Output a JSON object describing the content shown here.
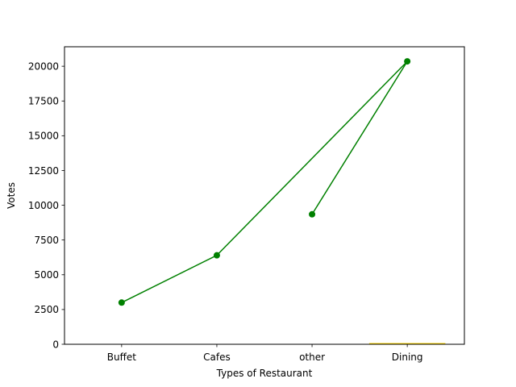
{
  "chart_data": {
    "type": "line",
    "title": "",
    "xlabel": "Types of Restaurant",
    "ylabel": "Votes",
    "categories": [
      "Buffet",
      "Cafes",
      "other",
      "Dining"
    ],
    "yticks": [
      "0",
      "2500",
      "5000",
      "7500",
      "10000",
      "12500",
      "15000",
      "17500",
      "20000"
    ],
    "ylim": [
      0,
      21400
    ],
    "grid": false,
    "line_color": "#008000",
    "bar_color": "#ffd700",
    "points": [
      {
        "category": "Buffet",
        "value": 3000
      },
      {
        "category": "Cafes",
        "value": 6400
      },
      {
        "category": "Dining",
        "value": 20350
      },
      {
        "category": "other",
        "value": 9350
      }
    ],
    "bar": {
      "category": "Dining",
      "value": 40
    }
  }
}
